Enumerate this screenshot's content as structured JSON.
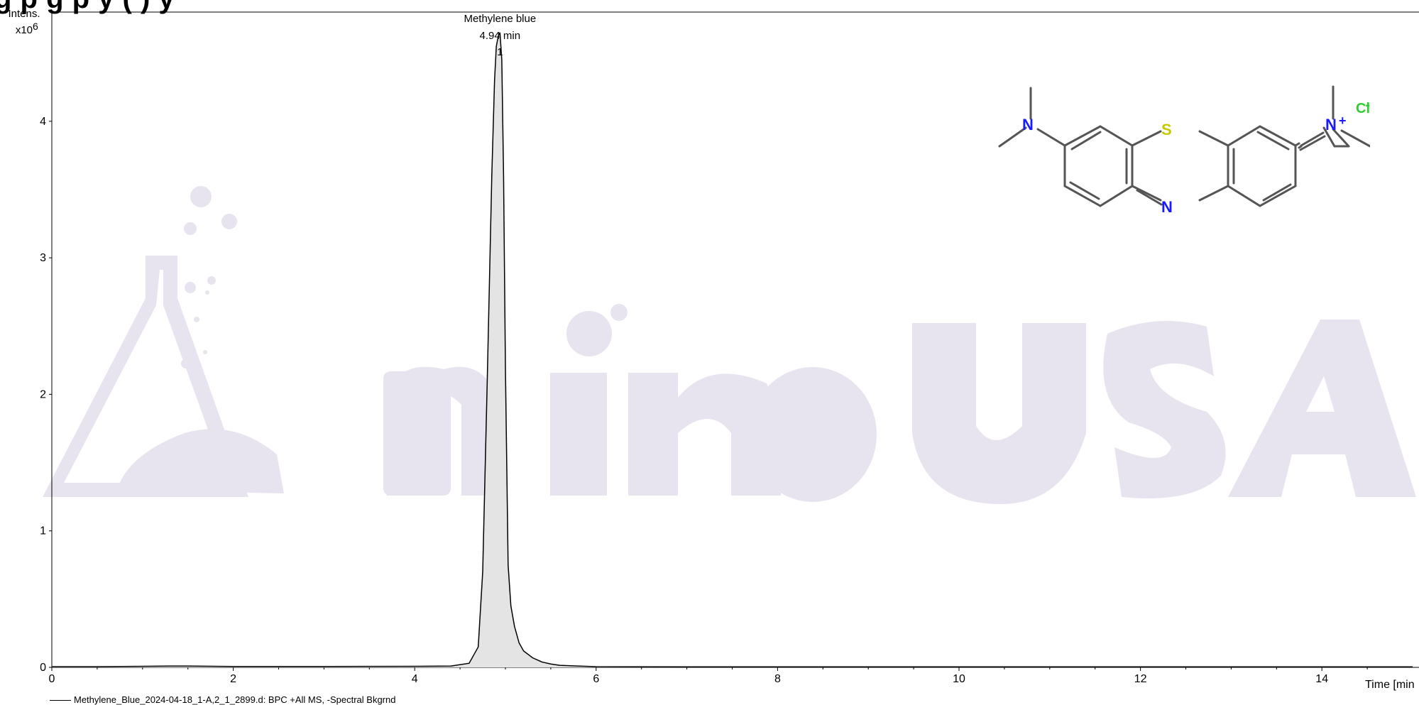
{
  "page": {
    "title": "g                 p             g p  y (     )                   y"
  },
  "chart_data": {
    "type": "line",
    "title": "",
    "y_axis_label_top": "Intens.",
    "y_axis_label_unit": "x10",
    "y_axis_label_exp": "6",
    "x_axis_label": "Time [min",
    "xlim": [
      0,
      15
    ],
    "ylim": [
      0,
      4.8
    ],
    "x_ticks": [
      "0",
      "2",
      "4",
      "6",
      "8",
      "10",
      "12",
      "14"
    ],
    "y_ticks": [
      "0",
      "1",
      "2",
      "3",
      "4"
    ],
    "fill_color": "#e4e4e4",
    "line_color": "#000000",
    "series": [
      {
        "name": "Methylene_Blue_2024-04-18_1-A,2_1_2899.d: BPC +All MS, -Spectral Bkgrnd",
        "x": [
          0,
          0.5,
          1.0,
          1.3,
          1.5,
          2.0,
          3.0,
          4.0,
          4.4,
          4.6,
          4.7,
          4.75,
          4.8,
          4.85,
          4.88,
          4.9,
          4.92,
          4.94,
          4.96,
          4.98,
          5.0,
          5.03,
          5.06,
          5.1,
          5.15,
          5.2,
          5.3,
          5.4,
          5.5,
          5.6,
          5.8,
          6.0,
          7.0,
          8.0,
          10.0,
          12.0,
          14.0,
          15.0
        ],
        "y": [
          0.005,
          0.005,
          0.008,
          0.01,
          0.01,
          0.006,
          0.006,
          0.008,
          0.01,
          0.03,
          0.15,
          0.7,
          2.1,
          3.6,
          4.3,
          4.55,
          4.62,
          4.65,
          4.45,
          3.6,
          2.2,
          0.75,
          0.45,
          0.3,
          0.18,
          0.12,
          0.07,
          0.04,
          0.025,
          0.015,
          0.01,
          0.005,
          0.004,
          0.004,
          0.004,
          0.004,
          0.004,
          0.004
        ]
      }
    ],
    "annotations": [
      {
        "label": "Methylene blue",
        "time": "4.94 min",
        "peak": "1",
        "x": 4.94,
        "y": 4.65
      }
    ],
    "legend": "bottom-left"
  },
  "watermark": {
    "text_left": "mino",
    "text_right": "USA",
    "color": "#e8e4ef"
  },
  "structure": {
    "atoms": [
      "N",
      "N",
      "+",
      "S",
      "N",
      "Cl",
      "-"
    ],
    "nitrogen_color": "#1a1aff",
    "sulfur_color": "#c8c800",
    "chloride_color": "#33cc33"
  }
}
